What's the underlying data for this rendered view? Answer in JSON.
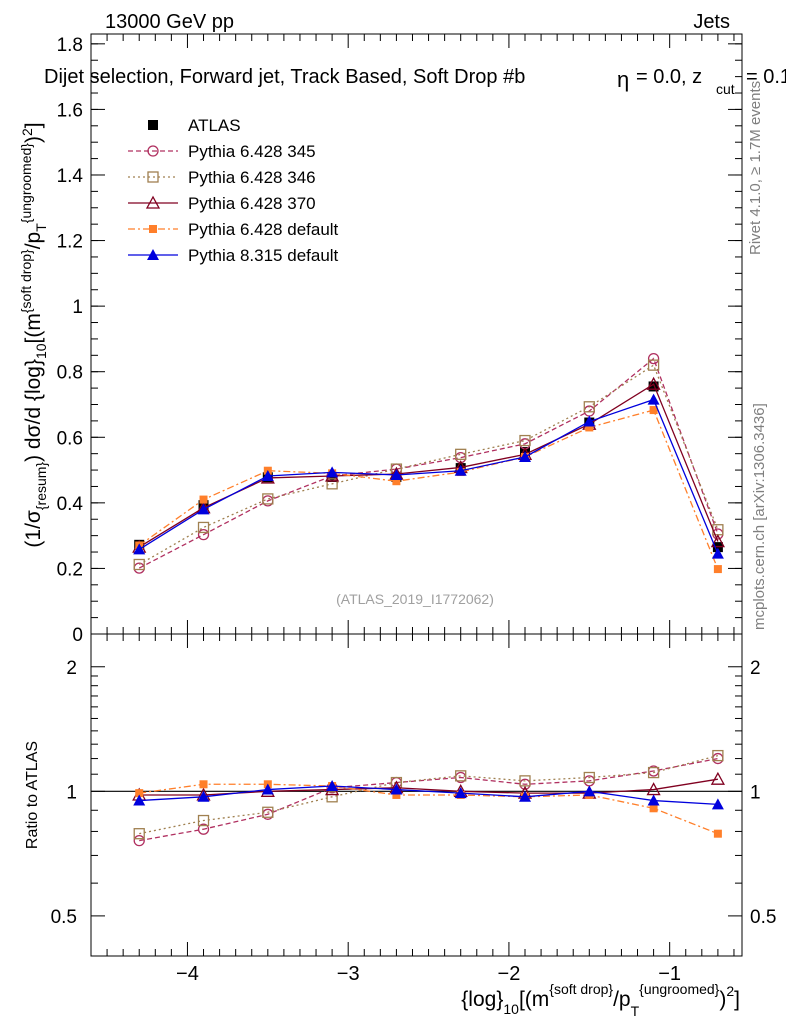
{
  "header": {
    "energy": "13000 GeV pp",
    "process": "Jets",
    "subtitle": "Dijet selection, Forward jet, Track Based, Soft Drop #b",
    "subtitle_tail": "= 0.0, z",
    "subtitle_sub": "cut",
    "subtitle_end": "= 0.1",
    "beta_symbol": "η"
  },
  "side": {
    "rivet": "Rivet 4.1.0, ≥ 1.7M events",
    "mcplots": "mcplots.cern.ch [arXiv:1306.3436]"
  },
  "watermark": "(ATLAS_2019_I1772062)",
  "axes": {
    "ylabel_main": "(1/σ{resum}) dσ/d {log}10[(m{soft drop}/pT{ungroomed})2]",
    "ylabel_ratio": "Ratio to ATLAS",
    "xlabel": "{log}10[(m{soft drop}/pT{ungroomed})2]"
  },
  "chart_data": [
    {
      "type": "scatter",
      "name": "main",
      "xlim": [
        -4.6,
        -0.55
      ],
      "ylim": [
        0,
        1.83
      ],
      "xticks": [
        -4,
        -3,
        -2,
        -1
      ],
      "yticks": [
        0,
        0.2,
        0.4,
        0.6,
        0.8,
        1,
        1.2,
        1.4,
        1.6,
        1.8
      ],
      "ytick_labels": [
        "0",
        "0.2",
        "0.4",
        "0.6",
        "0.8",
        "1",
        "1.2",
        "1.4",
        "1.6",
        "1.8"
      ],
      "x": [
        -4.3,
        -3.9,
        -3.5,
        -3.1,
        -2.7,
        -2.3,
        -1.9,
        -1.5,
        -1.1,
        -0.7
      ],
      "series": [
        {
          "name": "ATLAS",
          "color": "#000000",
          "dash": "",
          "marker": "filled-square",
          "values": [
            0.272,
            0.393,
            0.478,
            0.479,
            0.479,
            0.506,
            0.555,
            0.645,
            0.755,
            0.265
          ]
        },
        {
          "name": "Pythia 6.428 345",
          "color": "#b03060",
          "dash": "5,3",
          "marker": "open-circle",
          "values": [
            0.201,
            0.303,
            0.406,
            0.482,
            0.503,
            0.538,
            0.58,
            0.68,
            0.84,
            0.305
          ]
        },
        {
          "name": "Pythia 6.428 346",
          "color": "#a08050",
          "dash": "2,3",
          "marker": "open-square",
          "values": [
            0.212,
            0.325,
            0.412,
            0.458,
            0.503,
            0.548,
            0.59,
            0.693,
            0.82,
            0.318
          ]
        },
        {
          "name": "Pythia 6.428 370",
          "color": "#800020",
          "dash": "",
          "marker": "open-triangle",
          "values": [
            0.265,
            0.385,
            0.476,
            0.482,
            0.488,
            0.508,
            0.548,
            0.64,
            0.762,
            0.282
          ]
        },
        {
          "name": "Pythia 6.428 default",
          "color": "#ff7f2a",
          "dash": "7,3,2,3",
          "marker": "small-filled-square",
          "values": [
            0.27,
            0.41,
            0.498,
            0.49,
            0.466,
            0.494,
            0.54,
            0.63,
            0.683,
            0.198
          ]
        },
        {
          "name": "Pythia 8.315 default",
          "color": "#0000dd",
          "dash": "",
          "marker": "filled-triangle",
          "values": [
            0.258,
            0.38,
            0.482,
            0.493,
            0.485,
            0.498,
            0.54,
            0.648,
            0.715,
            0.245
          ]
        }
      ]
    },
    {
      "type": "scatter",
      "name": "ratio",
      "xlim": [
        -4.6,
        -0.55
      ],
      "ylim": [
        0.4,
        2.4
      ],
      "yscale": "log",
      "yticks_labeled": [
        0.5,
        1,
        2
      ],
      "ytick_labels": [
        "0.5",
        "1",
        "2"
      ],
      "xtick_labels": [
        "−4",
        "−3",
        "−2",
        "−1"
      ],
      "x": [
        -4.3,
        -3.9,
        -3.5,
        -3.1,
        -2.7,
        -2.3,
        -1.9,
        -1.5,
        -1.1,
        -0.7
      ],
      "series": [
        {
          "name": "Pythia 6.428 345",
          "values": [
            0.76,
            0.81,
            0.88,
            1.02,
            1.05,
            1.08,
            1.04,
            1.06,
            1.12,
            1.2
          ]
        },
        {
          "name": "Pythia 6.428 346",
          "values": [
            0.79,
            0.85,
            0.89,
            0.97,
            1.05,
            1.09,
            1.06,
            1.08,
            1.11,
            1.22
          ]
        },
        {
          "name": "Pythia 6.428 370",
          "values": [
            0.98,
            0.98,
            1.0,
            1.01,
            1.02,
            1.0,
            0.99,
            0.99,
            1.01,
            1.07
          ]
        },
        {
          "name": "Pythia 6.428 default",
          "values": [
            0.99,
            1.04,
            1.04,
            1.03,
            0.98,
            0.98,
            0.97,
            0.98,
            0.91,
            0.79
          ]
        },
        {
          "name": "Pythia 8.315 default",
          "values": [
            0.95,
            0.97,
            1.01,
            1.03,
            1.01,
            0.99,
            0.97,
            1.0,
            0.95,
            0.93
          ]
        }
      ]
    }
  ]
}
